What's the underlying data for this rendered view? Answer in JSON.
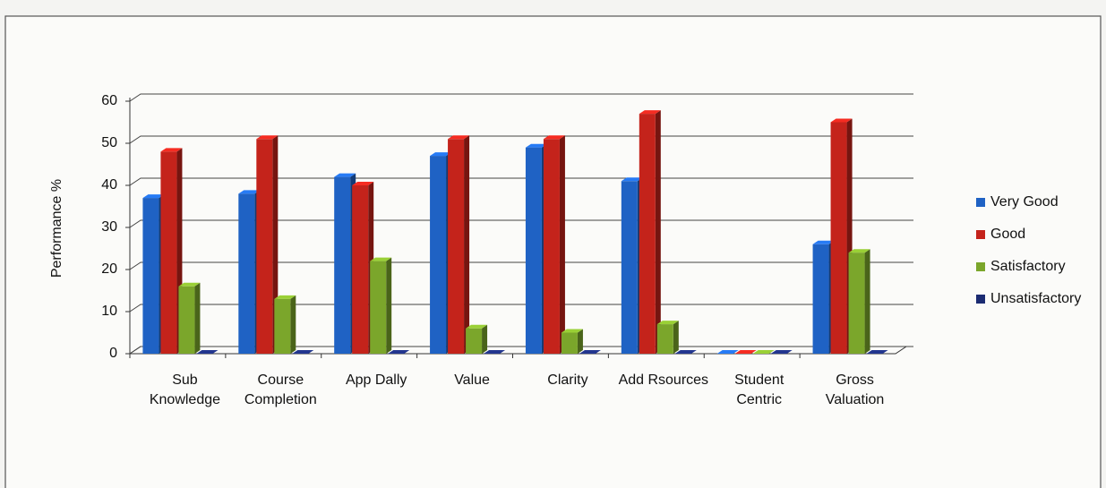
{
  "chart_data": {
    "type": "bar3d",
    "y_label": "Performance %",
    "categories": [
      "Sub Knowledge",
      "Course Completion",
      "App Dally",
      "Value",
      "Clarity",
      "Add Rsources",
      "Student Centric",
      "Gross Valuation"
    ],
    "series": [
      {
        "name": "Very Good",
        "color": "#1f62c4",
        "values": [
          37,
          38,
          42,
          47,
          49,
          41,
          0,
          26
        ]
      },
      {
        "name": "Good",
        "color": "#c4231b",
        "values": [
          48,
          51,
          40,
          51,
          51,
          57,
          0,
          55
        ]
      },
      {
        "name": "Satisfactory",
        "color": "#7ba62b",
        "values": [
          16,
          13,
          22,
          6,
          5,
          7,
          0,
          24
        ]
      },
      {
        "name": "Unsatisfactory",
        "color": "#1b2b72",
        "values": [
          0,
          0,
          0,
          0,
          0,
          0,
          0,
          0
        ]
      }
    ],
    "ylim": [
      0,
      60
    ],
    "yticks": [
      0,
      10,
      20,
      30,
      40,
      50,
      60
    ],
    "grid": true,
    "legend": "right"
  }
}
